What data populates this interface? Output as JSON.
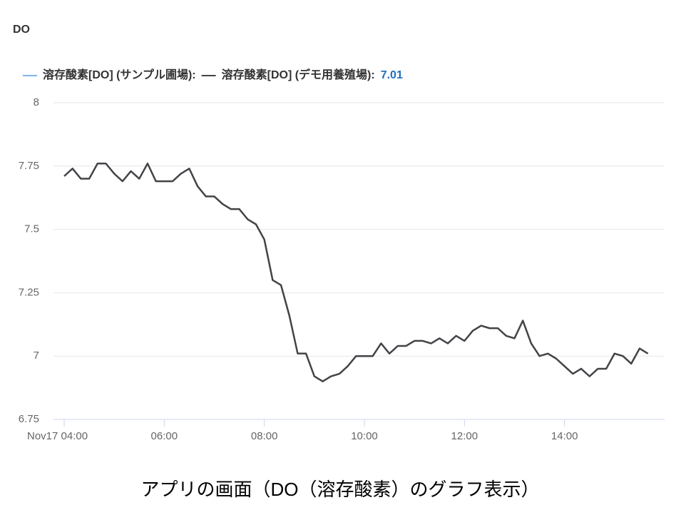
{
  "chart_data": {
    "type": "line",
    "title": "DO",
    "caption": "アプリの画面（DO（溶存酸素）のグラフ表示）",
    "x": [
      "04:00",
      "04:10",
      "04:20",
      "04:30",
      "04:40",
      "04:50",
      "05:00",
      "05:10",
      "05:20",
      "05:30",
      "05:40",
      "05:50",
      "06:00",
      "06:10",
      "06:20",
      "06:30",
      "06:40",
      "06:50",
      "07:00",
      "07:10",
      "07:20",
      "07:30",
      "07:40",
      "07:50",
      "08:00",
      "08:10",
      "08:20",
      "08:30",
      "08:40",
      "08:50",
      "09:00",
      "09:10",
      "09:20",
      "09:30",
      "09:40",
      "09:50",
      "10:00",
      "10:10",
      "10:20",
      "10:30",
      "10:40",
      "10:50",
      "11:00",
      "11:10",
      "11:20",
      "11:30",
      "11:40",
      "11:50",
      "12:00",
      "12:10",
      "12:20",
      "12:30",
      "12:40",
      "12:50",
      "13:00",
      "13:10",
      "13:20",
      "13:30",
      "13:40",
      "13:50",
      "14:00",
      "14:10",
      "14:20",
      "14:30",
      "14:40",
      "14:50",
      "15:00",
      "15:10",
      "15:20",
      "15:30",
      "15:40"
    ],
    "series": [
      {
        "name": "溶存酸素[DO] (サンプル圃場):",
        "color": "#7cb5ec",
        "values": [
          null,
          null,
          null,
          null,
          null,
          null,
          null,
          null,
          null,
          null,
          null,
          null,
          null,
          null,
          null,
          null,
          null,
          null,
          null,
          null,
          null,
          null,
          null,
          null,
          null,
          null,
          null,
          null,
          null,
          null,
          null,
          null,
          null,
          null,
          null,
          null,
          null,
          null,
          null,
          null,
          null,
          null,
          null,
          null,
          null,
          null,
          null,
          null,
          null,
          null,
          null,
          null,
          null,
          null,
          null,
          null,
          null,
          null,
          null,
          null,
          null,
          null,
          null,
          null,
          null,
          null,
          null,
          null,
          null,
          null,
          null
        ]
      },
      {
        "name": "溶存酸素[DO] (デモ用養殖場):",
        "color": "#434348",
        "current_value": 7.01,
        "values": [
          7.71,
          7.74,
          7.7,
          7.7,
          7.76,
          7.76,
          7.72,
          7.69,
          7.73,
          7.7,
          7.76,
          7.69,
          7.69,
          7.69,
          7.72,
          7.74,
          7.67,
          7.63,
          7.63,
          7.6,
          7.58,
          7.58,
          7.54,
          7.52,
          7.46,
          7.3,
          7.28,
          7.16,
          7.01,
          7.01,
          6.92,
          6.9,
          6.92,
          6.93,
          6.96,
          7.0,
          7.0,
          7.0,
          7.05,
          7.01,
          7.04,
          7.04,
          7.06,
          7.06,
          7.05,
          7.07,
          7.05,
          7.08,
          7.06,
          7.1,
          7.12,
          7.11,
          7.11,
          7.08,
          7.07,
          7.14,
          7.05,
          7.0,
          7.01,
          6.99,
          6.96,
          6.93,
          6.95,
          6.92,
          6.95,
          6.95,
          7.01,
          7.0,
          6.97,
          7.03,
          7.01
        ]
      }
    ],
    "xlim": [
      "04:00",
      "16:00"
    ],
    "xticks": [
      {
        "value": "04:00",
        "label": "Nov17 04:00"
      },
      "06:00",
      "08:00",
      "10:00",
      "12:00",
      "14:00"
    ],
    "ylim": [
      6.75,
      8
    ],
    "yticks": [
      6.75,
      7,
      7.25,
      7.5,
      7.75,
      8
    ],
    "grid": true
  }
}
